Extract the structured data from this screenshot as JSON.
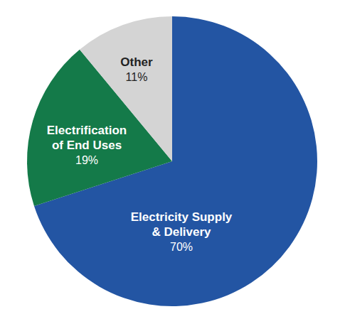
{
  "chart_data": {
    "type": "pie",
    "categories": [
      "Electricity Supply & Delivery",
      "Electrification of End Uses",
      "Other"
    ],
    "values": [
      70,
      19,
      11
    ],
    "value_labels": [
      "70%",
      "19%",
      "11%"
    ],
    "colors": [
      "#2355a3",
      "#147a49",
      "#d4d4d4"
    ],
    "data_labels": true
  }
}
